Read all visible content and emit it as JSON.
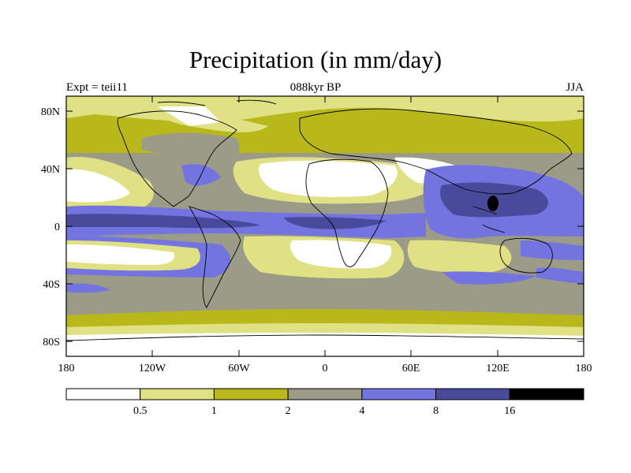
{
  "title": "Precipitation (in mm/day)",
  "subtitle": "088kyr BP",
  "left_label": "Expt = teii11",
  "right_label": "JJA",
  "lat_ticks": [
    "80N",
    "40N",
    "0",
    "40S",
    "80S"
  ],
  "lon_ticks": [
    "180",
    "120W",
    "60W",
    "0",
    "60E",
    "120E",
    "180"
  ],
  "legend": {
    "labels": [
      "0.5",
      "1",
      "2",
      "4",
      "8",
      "16"
    ],
    "colors": [
      "#ffffff",
      "#e0e084",
      "#b8b81a",
      "#9b9b88",
      "#7474e0",
      "#4a4a9c",
      "#000000"
    ]
  }
}
